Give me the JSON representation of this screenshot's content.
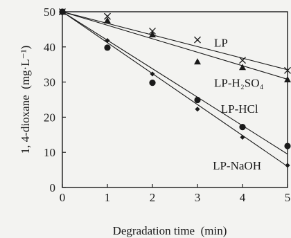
{
  "chart_data": {
    "type": "scatter",
    "xlabel": "Degradation time (min)",
    "ylabel": "1, 4-dioxane (mg·L⁻¹)",
    "xlim": [
      0,
      5
    ],
    "ylim": [
      0,
      50
    ],
    "x_ticks": [
      0,
      1,
      2,
      3,
      4,
      5
    ],
    "y_ticks": [
      0,
      10,
      20,
      30,
      40,
      50
    ],
    "grid": false,
    "legend": "labels placed next to fitted lines",
    "series": [
      {
        "name": "LP",
        "marker": "x",
        "x": [
          0,
          1,
          2,
          3,
          4,
          5
        ],
        "y": [
          50,
          48.7,
          44.5,
          42,
          36.2,
          33.3
        ],
        "fit": [
          [
            0,
            50
          ],
          [
            5,
            33.5
          ]
        ]
      },
      {
        "name": "LP-H₂SO₄",
        "marker": "triangle",
        "x": [
          0,
          1,
          2,
          3,
          4,
          5
        ],
        "y": [
          50,
          47.5,
          43.5,
          35.8,
          34.2,
          30.7
        ],
        "fit": [
          [
            0,
            50
          ],
          [
            5,
            30.8
          ]
        ]
      },
      {
        "name": "LP-HCl",
        "marker": "circle",
        "x": [
          0,
          1,
          2,
          3,
          4,
          5
        ],
        "y": [
          50,
          39.8,
          29.8,
          24.9,
          17.2,
          11.8
        ],
        "fit": [
          [
            0,
            50
          ],
          [
            5,
            9.5
          ]
        ]
      },
      {
        "name": "LP-NaOH",
        "marker": "diamond",
        "x": [
          0,
          1,
          2,
          3,
          4,
          5
        ],
        "y": [
          50,
          41.8,
          32.3,
          22.3,
          14.3,
          6.3
        ],
        "fit": [
          [
            0,
            50
          ],
          [
            5,
            6.0
          ]
        ]
      }
    ],
    "annotations": [
      {
        "series": 0,
        "text": "LP",
        "at": [
          3.37,
          40.1
        ]
      },
      {
        "series": 1,
        "text": "LP-H₂SO₄",
        "at": [
          3.37,
          28.6
        ]
      },
      {
        "series": 2,
        "text": "LP-HCl",
        "at": [
          3.52,
          21.3
        ]
      },
      {
        "series": 3,
        "text": "LP-NaOH",
        "at": [
          3.34,
          5.1
        ]
      }
    ]
  }
}
